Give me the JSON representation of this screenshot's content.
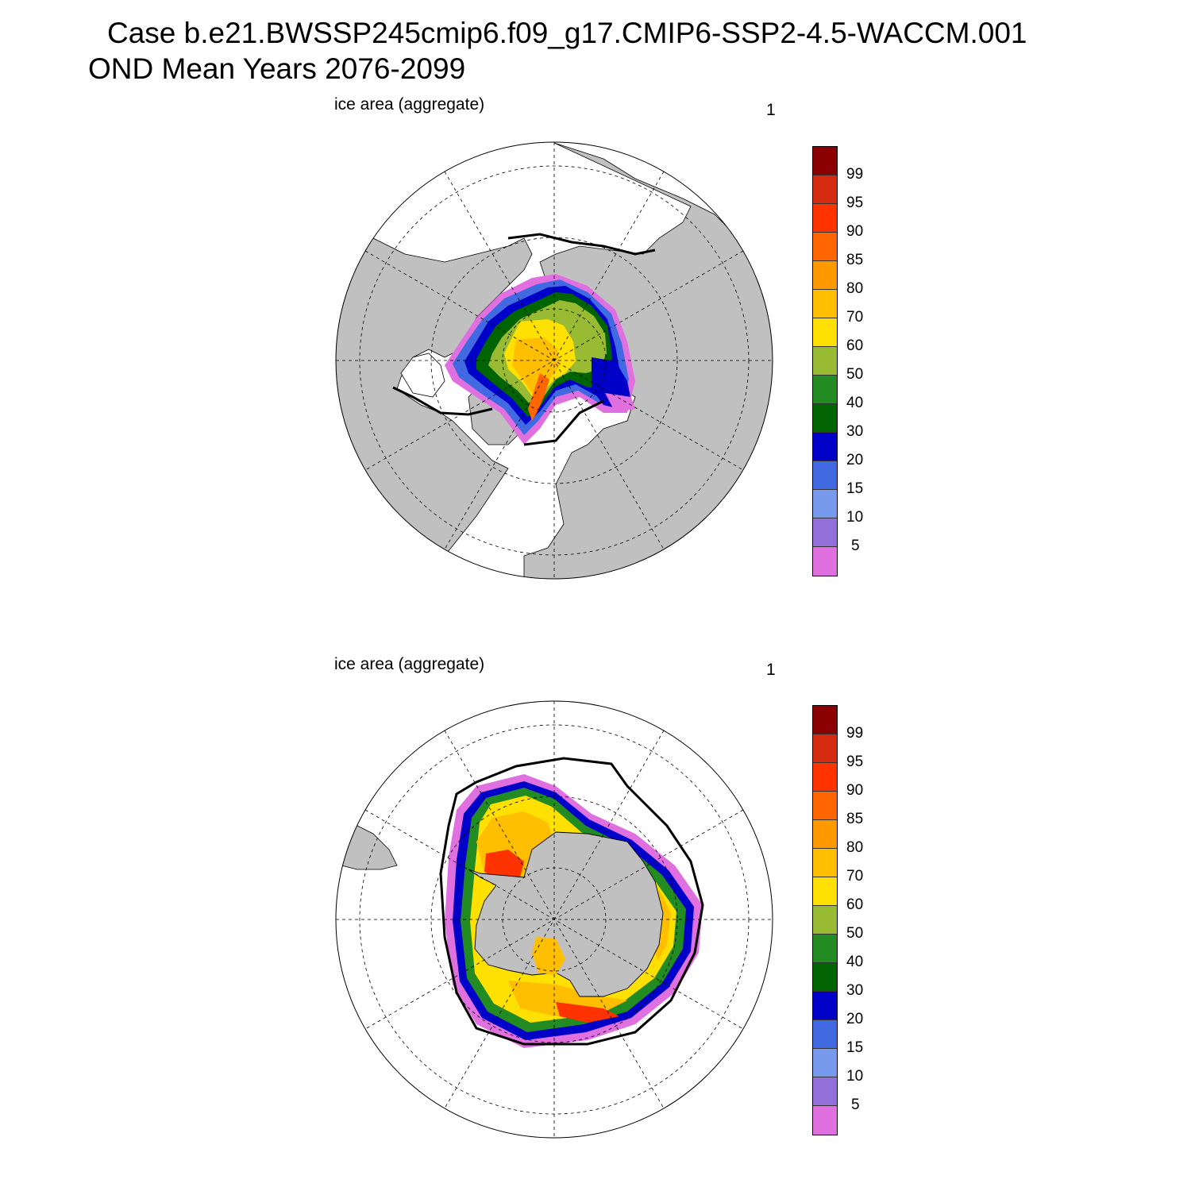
{
  "title": {
    "line1": "Case b.e21.BWSSP245cmip6.f09_g17.CMIP6-SSP2-4.5-WACCM.001",
    "line2": "OND Mean   Years 2076-2099"
  },
  "panels": [
    {
      "id": "nh",
      "label": "ice area  (aggregate)",
      "number": "1"
    },
    {
      "id": "sh",
      "label": "ice area  (aggregate)",
      "number": "1"
    }
  ],
  "colorbar": {
    "labels": [
      "99",
      "95",
      "90",
      "85",
      "80",
      "70",
      "60",
      "50",
      "40",
      "30",
      "20",
      "15",
      "10",
      "5"
    ],
    "colors": [
      "#8b0000",
      "#d42a10",
      "#ff3300",
      "#ff6600",
      "#ff9900",
      "#ffbf00",
      "#ffe000",
      "#99bb33",
      "#228b22",
      "#006400",
      "#0000c8",
      "#4169e1",
      "#7799ee",
      "#9370db",
      "#e070e0"
    ]
  },
  "colors": {
    "land": "#c0c0c0",
    "ocean": "#ffffff",
    "extent_line": "#000000"
  }
}
